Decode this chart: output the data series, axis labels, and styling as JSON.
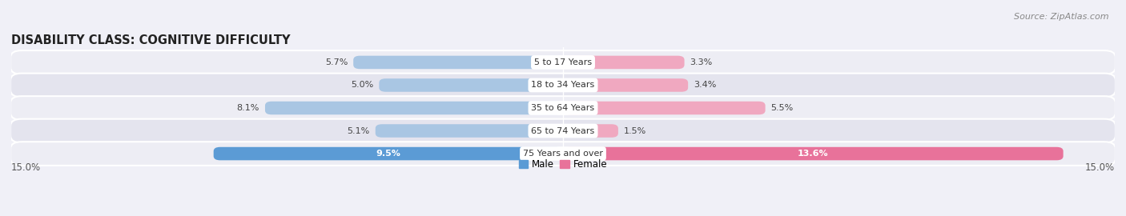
{
  "title": "DISABILITY CLASS: COGNITIVE DIFFICULTY",
  "source": "Source: ZipAtlas.com",
  "categories": [
    "5 to 17 Years",
    "18 to 34 Years",
    "35 to 64 Years",
    "65 to 74 Years",
    "75 Years and over"
  ],
  "male_values": [
    5.7,
    5.0,
    8.1,
    5.1,
    9.5
  ],
  "female_values": [
    3.3,
    3.4,
    5.5,
    1.5,
    13.6
  ],
  "male_color_dark": "#5b9bd5",
  "male_color_light": "#a9c6e3",
  "female_color_dark": "#e8729a",
  "female_color_light": "#f0a8c0",
  "row_bg_odd": "#ededf4",
  "row_bg_even": "#e4e4ee",
  "x_max": 15.0,
  "title_fontsize": 10.5,
  "source_fontsize": 8,
  "label_fontsize": 8,
  "cat_fontsize": 8,
  "bar_height": 0.58,
  "background_color": "#f0f0f7",
  "white_label_rows": [
    4
  ],
  "legend_male": "Male",
  "legend_female": "Female"
}
